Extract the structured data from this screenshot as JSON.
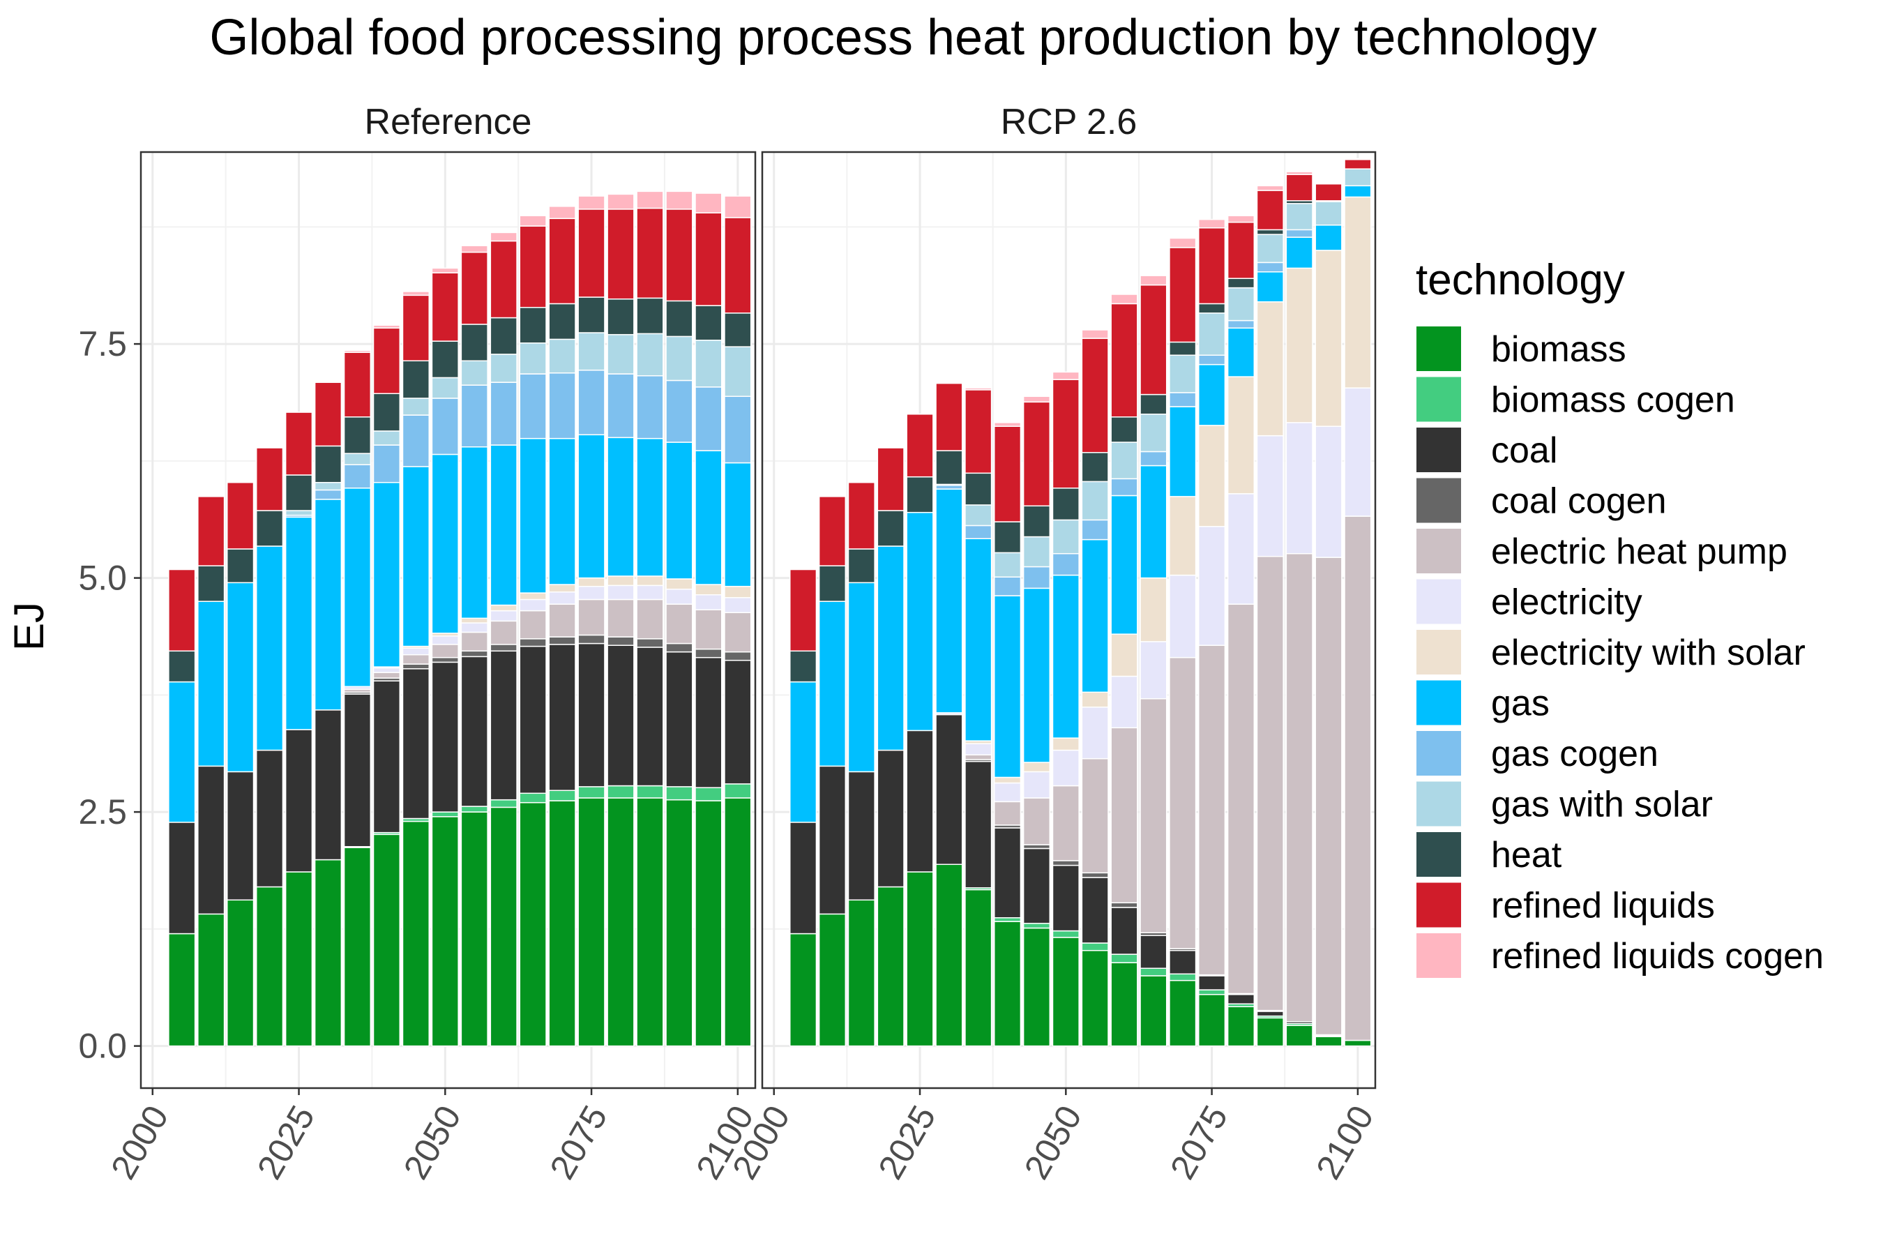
{
  "chart_data": {
    "type": "bar",
    "stacked": true,
    "title": "Global food processing process heat production by technology",
    "ylabel": "EJ",
    "xlabel": "",
    "ylim": [
      -0.45,
      9.55
    ],
    "xlim": [
      1998,
      2103
    ],
    "x_ticks": [
      2000,
      2025,
      2050,
      2075,
      2100
    ],
    "y_ticks": [
      0.0,
      2.5,
      5.0,
      7.5
    ],
    "y_tick_labels": [
      "0.0",
      "2.5",
      "5.0",
      "7.5"
    ],
    "grid": true,
    "legend_title": "technology",
    "legend_position": "right",
    "x": [
      2005,
      2010,
      2015,
      2020,
      2025,
      2030,
      2035,
      2040,
      2045,
      2050,
      2055,
      2060,
      2065,
      2070,
      2075,
      2080,
      2085,
      2090,
      2095,
      2100
    ],
    "series": [
      {
        "name": "biomass",
        "color": "#03941F"
      },
      {
        "name": "biomass cogen",
        "color": "#43CD80"
      },
      {
        "name": "coal",
        "color": "#333333"
      },
      {
        "name": "coal cogen",
        "color": "#666666"
      },
      {
        "name": "electric heat pump",
        "color": "#CCC0C4"
      },
      {
        "name": "electricity",
        "color": "#E6E6FA"
      },
      {
        "name": "electricity with solar",
        "color": "#EEE1D0"
      },
      {
        "name": "gas",
        "color": "#00BFFF"
      },
      {
        "name": "gas cogen",
        "color": "#7EC0EE"
      },
      {
        "name": "gas with solar",
        "color": "#ADD8E6"
      },
      {
        "name": "heat",
        "color": "#2F4F4F"
      },
      {
        "name": "refined liquids",
        "color": "#D01C2A"
      },
      {
        "name": "refined liquids cogen",
        "color": "#FFB6C1"
      }
    ],
    "panels": [
      {
        "label": "Reference",
        "values": {
          "refined liquids cogen": [
            0.0,
            0.0,
            0.0,
            0.0,
            0.0,
            0.01,
            0.02,
            0.03,
            0.04,
            0.05,
            0.07,
            0.09,
            0.11,
            0.13,
            0.14,
            0.16,
            0.18,
            0.19,
            0.21,
            0.23
          ],
          "refined liquids": [
            0.87,
            0.74,
            0.71,
            0.67,
            0.67,
            0.68,
            0.69,
            0.7,
            0.7,
            0.73,
            0.77,
            0.82,
            0.87,
            0.91,
            0.94,
            0.96,
            0.96,
            0.98,
            0.99,
            1.02
          ],
          "heat": [
            0.33,
            0.38,
            0.36,
            0.38,
            0.38,
            0.39,
            0.39,
            0.4,
            0.4,
            0.39,
            0.39,
            0.39,
            0.38,
            0.38,
            0.38,
            0.38,
            0.38,
            0.38,
            0.37,
            0.36
          ],
          "gas with solar": [
            0.0,
            0.0,
            0.0,
            0.0,
            0.05,
            0.08,
            0.12,
            0.15,
            0.18,
            0.22,
            0.26,
            0.3,
            0.33,
            0.36,
            0.4,
            0.42,
            0.45,
            0.47,
            0.5,
            0.53
          ],
          "gas cogen": [
            0.0,
            0.0,
            0.0,
            0.0,
            0.02,
            0.1,
            0.25,
            0.4,
            0.55,
            0.6,
            0.66,
            0.67,
            0.69,
            0.7,
            0.69,
            0.68,
            0.67,
            0.66,
            0.68,
            0.71
          ],
          "gas": [
            1.5,
            1.76,
            2.02,
            2.18,
            2.27,
            2.25,
            2.12,
            1.97,
            1.92,
            1.91,
            1.83,
            1.71,
            1.65,
            1.56,
            1.53,
            1.48,
            1.47,
            1.46,
            1.43,
            1.32
          ],
          "electricity with solar": [
            0.0,
            0.0,
            0.0,
            0.0,
            0.0,
            0.0,
            0.0,
            0.01,
            0.02,
            0.03,
            0.05,
            0.06,
            0.07,
            0.08,
            0.09,
            0.1,
            0.1,
            0.11,
            0.11,
            0.12
          ],
          "electricity": [
            0.0,
            0.0,
            0.0,
            0.0,
            0.0,
            0.0,
            0.03,
            0.05,
            0.07,
            0.09,
            0.1,
            0.11,
            0.12,
            0.13,
            0.14,
            0.15,
            0.15,
            0.16,
            0.16,
            0.16
          ],
          "electric heat pump": [
            0.0,
            0.0,
            0.0,
            0.0,
            0.0,
            0.0,
            0.03,
            0.06,
            0.1,
            0.14,
            0.2,
            0.25,
            0.3,
            0.35,
            0.38,
            0.4,
            0.42,
            0.42,
            0.42,
            0.42
          ],
          "coal cogen": [
            0.0,
            0.0,
            0.0,
            0.0,
            0.0,
            0.0,
            0.02,
            0.03,
            0.05,
            0.05,
            0.06,
            0.07,
            0.08,
            0.08,
            0.09,
            0.09,
            0.09,
            0.09,
            0.09,
            0.09
          ],
          "coal": [
            1.19,
            1.58,
            1.37,
            1.46,
            1.52,
            1.6,
            1.63,
            1.62,
            1.6,
            1.6,
            1.6,
            1.59,
            1.57,
            1.56,
            1.53,
            1.5,
            1.48,
            1.44,
            1.39,
            1.32
          ],
          "biomass cogen": [
            0.0,
            0.0,
            0.0,
            0.0,
            0.0,
            0.0,
            0.01,
            0.02,
            0.03,
            0.05,
            0.06,
            0.08,
            0.1,
            0.11,
            0.12,
            0.13,
            0.13,
            0.14,
            0.14,
            0.15
          ],
          "biomass": [
            1.2,
            1.41,
            1.56,
            1.7,
            1.86,
            1.99,
            2.12,
            2.26,
            2.4,
            2.45,
            2.5,
            2.55,
            2.6,
            2.62,
            2.65,
            2.65,
            2.65,
            2.63,
            2.62,
            2.65
          ]
        }
      },
      {
        "label": "RCP 2.6",
        "values": {
          "refined liquids cogen": [
            0.0,
            0.0,
            0.0,
            0.0,
            0.0,
            0.01,
            0.02,
            0.04,
            0.06,
            0.08,
            0.09,
            0.1,
            0.1,
            0.1,
            0.09,
            0.07,
            0.05,
            0.03,
            0.01,
            0.01
          ],
          "refined liquids": [
            0.87,
            0.74,
            0.71,
            0.67,
            0.67,
            0.72,
            0.89,
            1.02,
            1.11,
            1.16,
            1.22,
            1.21,
            1.17,
            1.01,
            0.81,
            0.6,
            0.42,
            0.28,
            0.18,
            0.1
          ],
          "heat": [
            0.33,
            0.38,
            0.36,
            0.38,
            0.38,
            0.36,
            0.34,
            0.33,
            0.33,
            0.34,
            0.31,
            0.27,
            0.21,
            0.14,
            0.1,
            0.1,
            0.05,
            0.03,
            0.01,
            0.0
          ],
          "gas with solar": [
            0.0,
            0.0,
            0.0,
            0.0,
            0.0,
            0.01,
            0.22,
            0.26,
            0.32,
            0.36,
            0.41,
            0.39,
            0.4,
            0.4,
            0.45,
            0.35,
            0.3,
            0.28,
            0.25,
            0.18
          ],
          "gas cogen": [
            0.0,
            0.0,
            0.0,
            0.0,
            0.0,
            0.04,
            0.14,
            0.2,
            0.23,
            0.23,
            0.21,
            0.18,
            0.15,
            0.15,
            0.1,
            0.08,
            0.1,
            0.08,
            0.0,
            0.0
          ],
          "gas": [
            1.5,
            1.76,
            2.02,
            2.18,
            2.33,
            2.39,
            2.16,
            1.94,
            1.86,
            1.74,
            1.63,
            1.48,
            1.2,
            0.96,
            0.65,
            0.52,
            0.32,
            0.33,
            0.27,
            0.12
          ],
          "electricity with solar": [
            0.0,
            0.0,
            0.0,
            0.0,
            0.0,
            0.0,
            0.03,
            0.06,
            0.1,
            0.13,
            0.16,
            0.45,
            0.68,
            0.84,
            1.08,
            1.25,
            1.43,
            1.65,
            1.88,
            2.04
          ],
          "electricity": [
            0.0,
            0.0,
            0.0,
            0.0,
            0.0,
            0.02,
            0.12,
            0.2,
            0.28,
            0.38,
            0.55,
            0.55,
            0.61,
            0.88,
            1.27,
            1.18,
            1.29,
            1.4,
            1.4,
            1.37
          ],
          "electric heat pump": [
            0.0,
            0.0,
            0.0,
            0.0,
            0.0,
            0.0,
            0.05,
            0.25,
            0.5,
            0.8,
            1.22,
            1.87,
            2.5,
            3.11,
            3.52,
            4.16,
            4.85,
            5.0,
            5.1,
            5.6
          ],
          "coal cogen": [
            0.0,
            0.0,
            0.0,
            0.0,
            0.0,
            0.0,
            0.02,
            0.03,
            0.04,
            0.05,
            0.05,
            0.05,
            0.03,
            0.02,
            0.01,
            0.01,
            0.01,
            0.0,
            0.0,
            0.0
          ],
          "coal": [
            1.19,
            1.58,
            1.37,
            1.46,
            1.51,
            1.6,
            1.35,
            0.96,
            0.8,
            0.7,
            0.7,
            0.5,
            0.35,
            0.25,
            0.15,
            0.1,
            0.05,
            0.02,
            0.01,
            0.0
          ],
          "biomass cogen": [
            0.0,
            0.0,
            0.0,
            0.0,
            0.0,
            0.0,
            0.02,
            0.04,
            0.05,
            0.07,
            0.08,
            0.09,
            0.08,
            0.07,
            0.05,
            0.03,
            0.02,
            0.02,
            0.01,
            0.0
          ],
          "biomass": [
            1.2,
            1.41,
            1.56,
            1.7,
            1.86,
            1.94,
            1.67,
            1.33,
            1.26,
            1.16,
            1.02,
            0.89,
            0.75,
            0.7,
            0.55,
            0.42,
            0.3,
            0.22,
            0.1,
            0.06
          ]
        }
      }
    ]
  }
}
